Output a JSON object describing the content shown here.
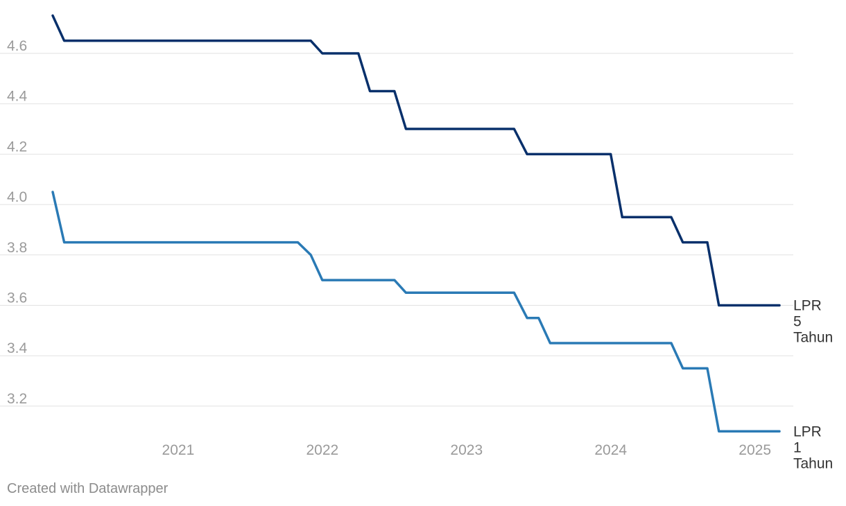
{
  "chart_data": {
    "type": "line",
    "ylim": [
      3.1,
      4.75
    ],
    "y_ticks": [
      3.2,
      3.4,
      3.6,
      3.8,
      4.0,
      4.2,
      4.4,
      4.6
    ],
    "y_tick_labels": [
      "3.2",
      "3.4",
      "3.6",
      "3.8",
      "4.0",
      "4.2",
      "4.4",
      "4.6"
    ],
    "x_ticks": [
      2021,
      2022,
      2023,
      2024,
      2025
    ],
    "x_tick_labels": [
      "2021",
      "2022",
      "2023",
      "2024",
      "2025"
    ],
    "xlim": [
      2020.13,
      2025.17
    ],
    "grid": true,
    "series": [
      {
        "name": "LPR 5 Tahun",
        "label_lines": [
          "LPR",
          "5",
          "Tahun"
        ],
        "color": "#08306b",
        "points": [
          [
            2020.13,
            4.75
          ],
          [
            2020.21,
            4.65
          ],
          [
            2021.92,
            4.65
          ],
          [
            2022.0,
            4.6
          ],
          [
            2022.25,
            4.6
          ],
          [
            2022.33,
            4.45
          ],
          [
            2022.5,
            4.45
          ],
          [
            2022.58,
            4.3
          ],
          [
            2023.33,
            4.3
          ],
          [
            2023.42,
            4.2
          ],
          [
            2024.0,
            4.2
          ],
          [
            2024.08,
            3.95
          ],
          [
            2024.42,
            3.95
          ],
          [
            2024.5,
            3.85
          ],
          [
            2024.67,
            3.85
          ],
          [
            2024.75,
            3.6
          ],
          [
            2025.17,
            3.6
          ]
        ]
      },
      {
        "name": "LPR 1 Tahun",
        "label_lines": [
          "LPR",
          "1",
          "Tahun"
        ],
        "color": "#2a7ab5",
        "points": [
          [
            2020.13,
            4.05
          ],
          [
            2020.21,
            3.85
          ],
          [
            2021.83,
            3.85
          ],
          [
            2021.92,
            3.8
          ],
          [
            2022.0,
            3.7
          ],
          [
            2022.5,
            3.7
          ],
          [
            2022.58,
            3.65
          ],
          [
            2023.33,
            3.65
          ],
          [
            2023.42,
            3.55
          ],
          [
            2023.5,
            3.55
          ],
          [
            2023.58,
            3.45
          ],
          [
            2024.42,
            3.45
          ],
          [
            2024.5,
            3.35
          ],
          [
            2024.67,
            3.35
          ],
          [
            2024.75,
            3.1
          ],
          [
            2025.17,
            3.1
          ]
        ]
      }
    ]
  },
  "footer": "Created with Datawrapper"
}
